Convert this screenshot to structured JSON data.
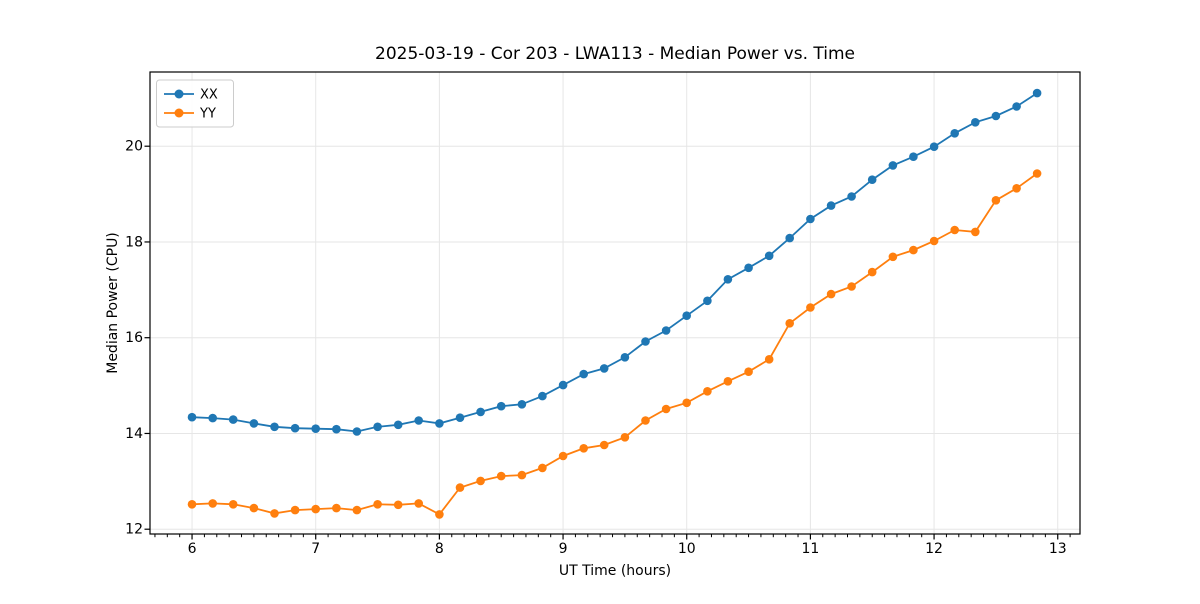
{
  "chart_data": {
    "type": "line",
    "title": "2025-03-19 - Cor 203 - LWA113 - Median Power vs. Time",
    "xlabel": "UT Time (hours)",
    "ylabel": "Median Power (CPU)",
    "x": [
      6.0,
      6.167,
      6.333,
      6.5,
      6.667,
      6.833,
      7.0,
      7.167,
      7.333,
      7.5,
      7.667,
      7.833,
      8.0,
      8.167,
      8.333,
      8.5,
      8.667,
      8.833,
      9.0,
      9.167,
      9.333,
      9.5,
      9.667,
      9.833,
      10.0,
      10.167,
      10.333,
      10.5,
      10.667,
      10.833,
      11.0,
      11.167,
      11.333,
      11.5,
      11.667,
      11.833,
      12.0,
      12.167,
      12.333,
      12.5,
      12.667,
      12.833
    ],
    "series": [
      {
        "name": "XX",
        "color": "#1f77b4",
        "values": [
          14.34,
          14.32,
          14.29,
          14.21,
          14.14,
          14.11,
          14.1,
          14.09,
          14.04,
          14.14,
          14.18,
          14.27,
          14.21,
          14.33,
          14.45,
          14.57,
          14.61,
          14.78,
          15.01,
          15.24,
          15.36,
          15.59,
          15.92,
          16.15,
          16.46,
          16.77,
          17.22,
          17.46,
          17.71,
          18.08,
          18.48,
          18.76,
          18.95,
          19.3,
          19.6,
          19.78,
          19.99,
          20.27,
          20.5,
          20.63,
          20.83,
          21.11
        ]
      },
      {
        "name": "YY",
        "color": "#ff7f0e",
        "values": [
          12.52,
          12.54,
          12.52,
          12.44,
          12.33,
          12.4,
          12.42,
          12.44,
          12.4,
          12.52,
          12.51,
          12.54,
          12.31,
          12.87,
          13.01,
          13.11,
          13.13,
          13.28,
          13.53,
          13.69,
          13.76,
          13.92,
          14.27,
          14.51,
          14.64,
          14.88,
          15.09,
          15.29,
          15.55,
          16.3,
          16.63,
          16.91,
          17.07,
          17.37,
          17.69,
          17.83,
          18.02,
          18.25,
          18.21,
          18.87,
          19.12,
          19.43
        ]
      }
    ],
    "xlim": [
      5.66,
      13.18
    ],
    "ylim": [
      11.9,
      21.55
    ],
    "xticks": [
      6,
      7,
      8,
      9,
      10,
      11,
      12,
      13
    ],
    "yticks": [
      12,
      14,
      16,
      18,
      20
    ],
    "x_minor_step": 0.1,
    "grid": true,
    "legend_position": "upper-left",
    "colors": {
      "grid": "#e6e6e6",
      "spine": "#000000",
      "legend_border": "#cccccc",
      "background": "#ffffff"
    }
  }
}
